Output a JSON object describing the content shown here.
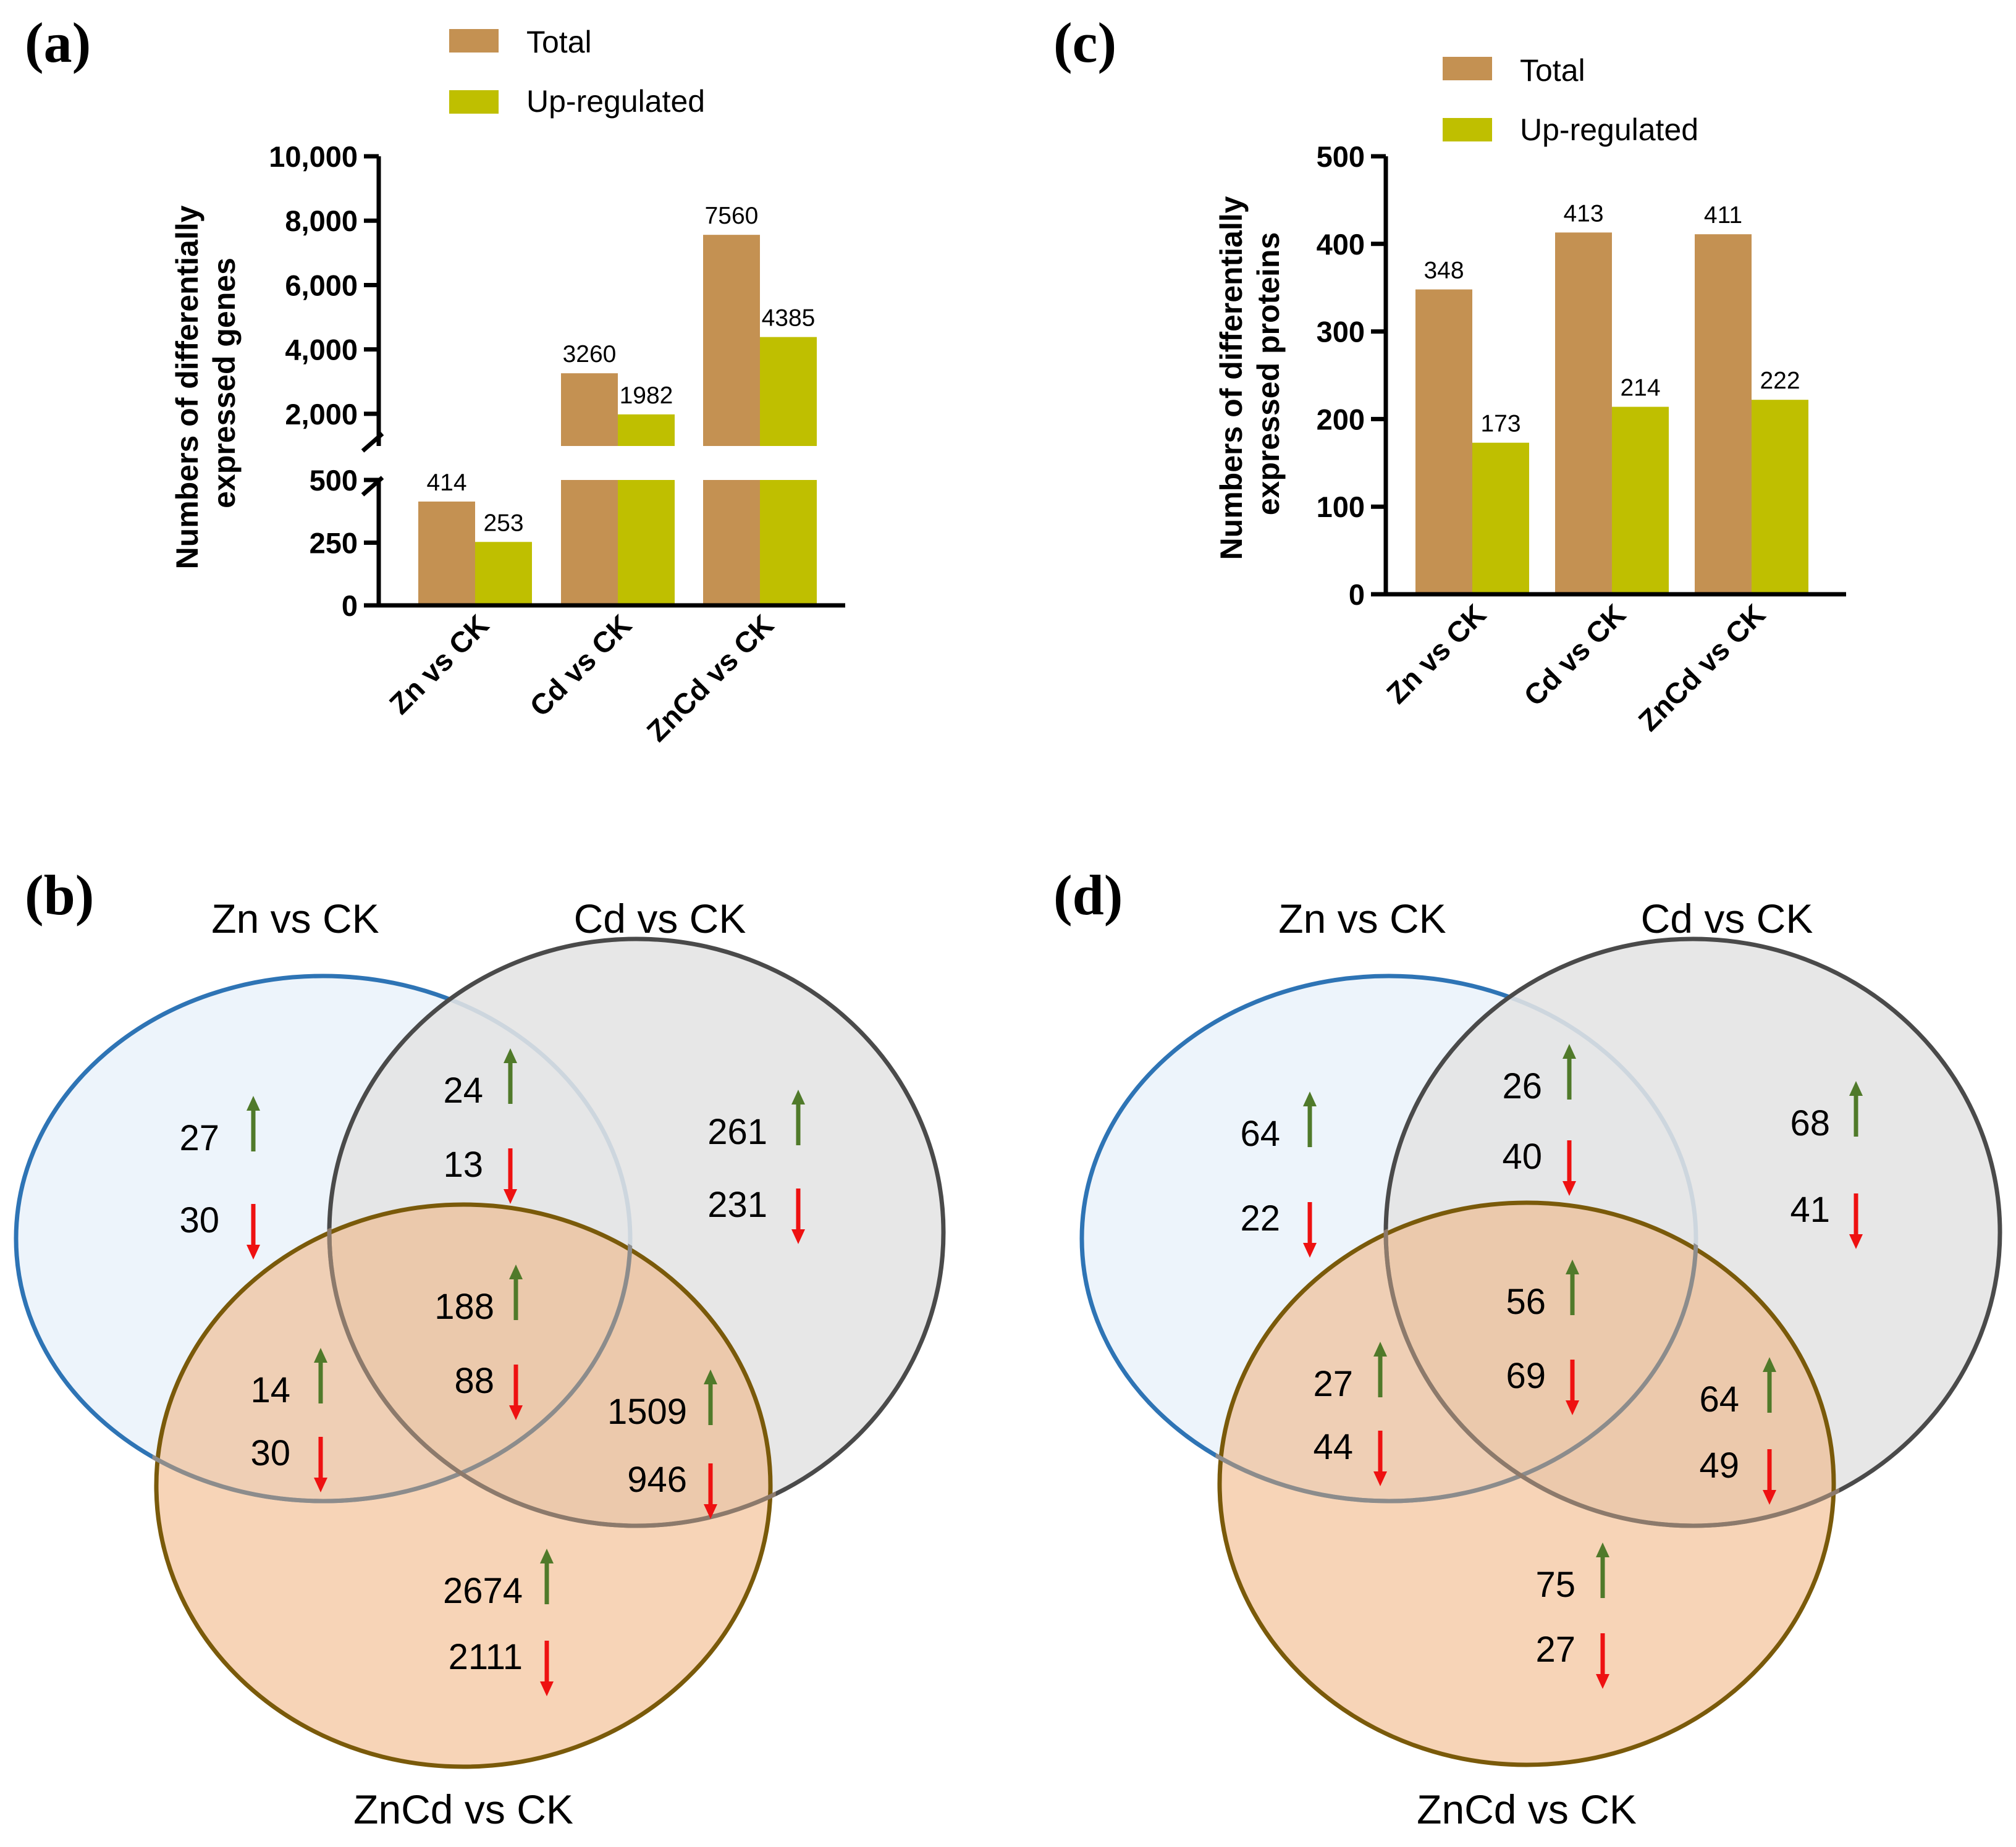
{
  "colors": {
    "total": "#C49152",
    "up": "#BFBF00",
    "arrow_up": "#507A2A",
    "arrow_down": "#EE1111",
    "axis": "#000000",
    "venn_a_fill": "#EDF4FB",
    "venn_a_stroke": "#2E74B5",
    "venn_b_fill": "#E4E4E4",
    "venn_b_stroke": "#4A4A4A",
    "venn_c_fill": "#F0B07C",
    "venn_c_stroke": "#7A5A0A"
  },
  "chart_data": [
    {
      "panel": "(a)",
      "type": "bar",
      "categories": [
        "Zn vs CK",
        "Cd vs CK",
        "ZnCd vs CK"
      ],
      "series": [
        {
          "name": "Total",
          "values": [
            414,
            3260,
            7560
          ]
        },
        {
          "name": "Up-regulated",
          "values": [
            253,
            1982,
            4385
          ]
        }
      ],
      "ylabel_lines": [
        "Numbers of differentially",
        "expressed genes"
      ],
      "broken_axis": true,
      "lower_ylim": [
        0,
        500
      ],
      "lower_ticks": [
        "0",
        "250",
        "500"
      ],
      "lower_tick_values": [
        0,
        250,
        500
      ],
      "upper_ylim": [
        1000,
        10000
      ],
      "upper_ticks": [
        "2,000",
        "4,000",
        "6,000",
        "8,000",
        "10,000"
      ],
      "upper_tick_values": [
        2000,
        4000,
        6000,
        8000,
        10000
      ],
      "legend": [
        "Total",
        "Up-regulated"
      ]
    },
    {
      "panel": "(c)",
      "type": "bar",
      "categories": [
        "Zn vs CK",
        "Cd vs CK",
        "ZnCd vs CK"
      ],
      "series": [
        {
          "name": "Total",
          "values": [
            348,
            413,
            411
          ]
        },
        {
          "name": "Up-regulated",
          "values": [
            173,
            214,
            222
          ]
        }
      ],
      "ylabel_lines": [
        "Numbers of differentially",
        "expressed proteins"
      ],
      "ylim": [
        0,
        500
      ],
      "ticks": [
        "0",
        "100",
        "200",
        "300",
        "400",
        "500"
      ],
      "tick_values": [
        0,
        100,
        200,
        300,
        400,
        500
      ],
      "legend": [
        "Total",
        "Up-regulated"
      ]
    }
  ],
  "venn_b": {
    "panel": "(b)",
    "sets": [
      "Zn vs CK",
      "Cd vs CK",
      "ZnCd vs CK"
    ],
    "regions": {
      "zn_only": {
        "up": "27",
        "down": "30"
      },
      "zn_cd": {
        "up": "24",
        "down": "13"
      },
      "cd_only": {
        "up": "261",
        "down": "231"
      },
      "all_three": {
        "up": "188",
        "down": "88"
      },
      "zn_zncd": {
        "up": "14",
        "down": "30"
      },
      "cd_zncd": {
        "up": "1509",
        "down": "946"
      },
      "zncd_only": {
        "up": "2674",
        "down": "2111"
      }
    }
  },
  "venn_d": {
    "panel": "(d)",
    "sets": [
      "Zn vs CK",
      "Cd vs CK",
      "ZnCd vs CK"
    ],
    "regions": {
      "zn_only": {
        "up": "64",
        "down": "22"
      },
      "zn_cd": {
        "up": "26",
        "down": "40"
      },
      "cd_only": {
        "up": "68",
        "down": "41"
      },
      "all_three": {
        "up": "56",
        "down": "69"
      },
      "zn_zncd": {
        "up": "27",
        "down": "44"
      },
      "cd_zncd": {
        "up": "64",
        "down": "49"
      },
      "zncd_only": {
        "up": "75",
        "down": "27"
      }
    }
  }
}
